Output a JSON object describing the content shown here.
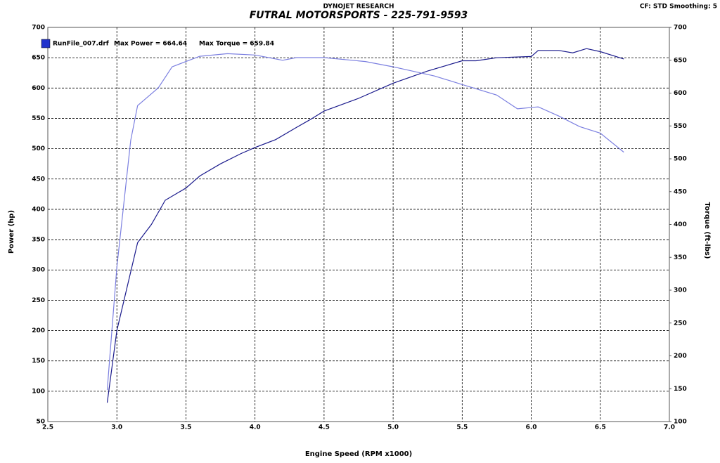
{
  "chart_data": {
    "type": "line",
    "header": "DYNOJET RESEARCH",
    "title": "FUTRAL MOTORSPORTS - 225-791-9593",
    "settings_text": "CF: STD  Smoothing: 5",
    "xlabel": "Engine Speed (RPM x1000)",
    "ylabel": "Power (hp)",
    "y2label": "Torque (ft-lbs)",
    "annotations": [
      "Max Power = 664.64",
      "Max Torque = 659.84"
    ],
    "xlim": [
      2.5,
      7.0
    ],
    "xticks": [
      2.5,
      {
        "value": 3.0,
        "label": "3.0"
      },
      3.5,
      {
        "value": 4.0,
        "label": "4.0"
      },
      4.5,
      {
        "value": 5.0,
        "label": "5.0"
      },
      5.5,
      {
        "value": 6.0,
        "label": "6.0"
      },
      6.5,
      {
        "value": 7.0,
        "label": "7.0"
      }
    ],
    "ylim": [
      50,
      700
    ],
    "yticks": [
      50,
      100,
      150,
      200,
      250,
      300,
      350,
      400,
      450,
      500,
      550,
      600,
      650,
      700
    ],
    "y2lim": [
      100,
      700
    ],
    "y2ticks": [
      100,
      150,
      200,
      250,
      300,
      350,
      400,
      450,
      500,
      550,
      600,
      650,
      700
    ],
    "grid": true,
    "series": [
      {
        "name": "RunFile_007.drf",
        "color": "#1a1a8c",
        "x": [
          2.93,
          3.0,
          3.15,
          3.25,
          3.35,
          3.5,
          3.6,
          3.75,
          3.9,
          4.0,
          4.15,
          4.3,
          4.4,
          4.5,
          4.75,
          5.0,
          5.25,
          5.5,
          5.6,
          5.75,
          6.0,
          6.05,
          6.2,
          6.3,
          6.4,
          6.5,
          6.67
        ],
        "values": [
          81,
          200,
          345,
          375,
          415,
          435,
          455,
          475,
          492,
          502,
          515,
          535,
          548,
          562,
          583,
          608,
          628,
          645,
          645,
          650,
          652,
          662,
          662,
          658,
          665,
          660,
          648
        ]
      },
      {
        "color": "#7b7fe0",
        "axis": "y2",
        "x": [
          2.93,
          3.0,
          3.1,
          3.15,
          3.3,
          3.4,
          3.5,
          3.6,
          3.8,
          4.0,
          4.2,
          4.3,
          4.5,
          4.8,
          5.0,
          5.3,
          5.5,
          5.75,
          5.9,
          6.05,
          6.2,
          6.35,
          6.5,
          6.67
        ],
        "values": [
          148,
          335,
          528,
          581,
          608,
          640,
          648,
          656,
          660,
          658,
          650,
          654,
          654,
          648,
          640,
          626,
          613,
          597,
          576,
          579,
          565,
          549,
          539,
          510
        ]
      }
    ]
  }
}
